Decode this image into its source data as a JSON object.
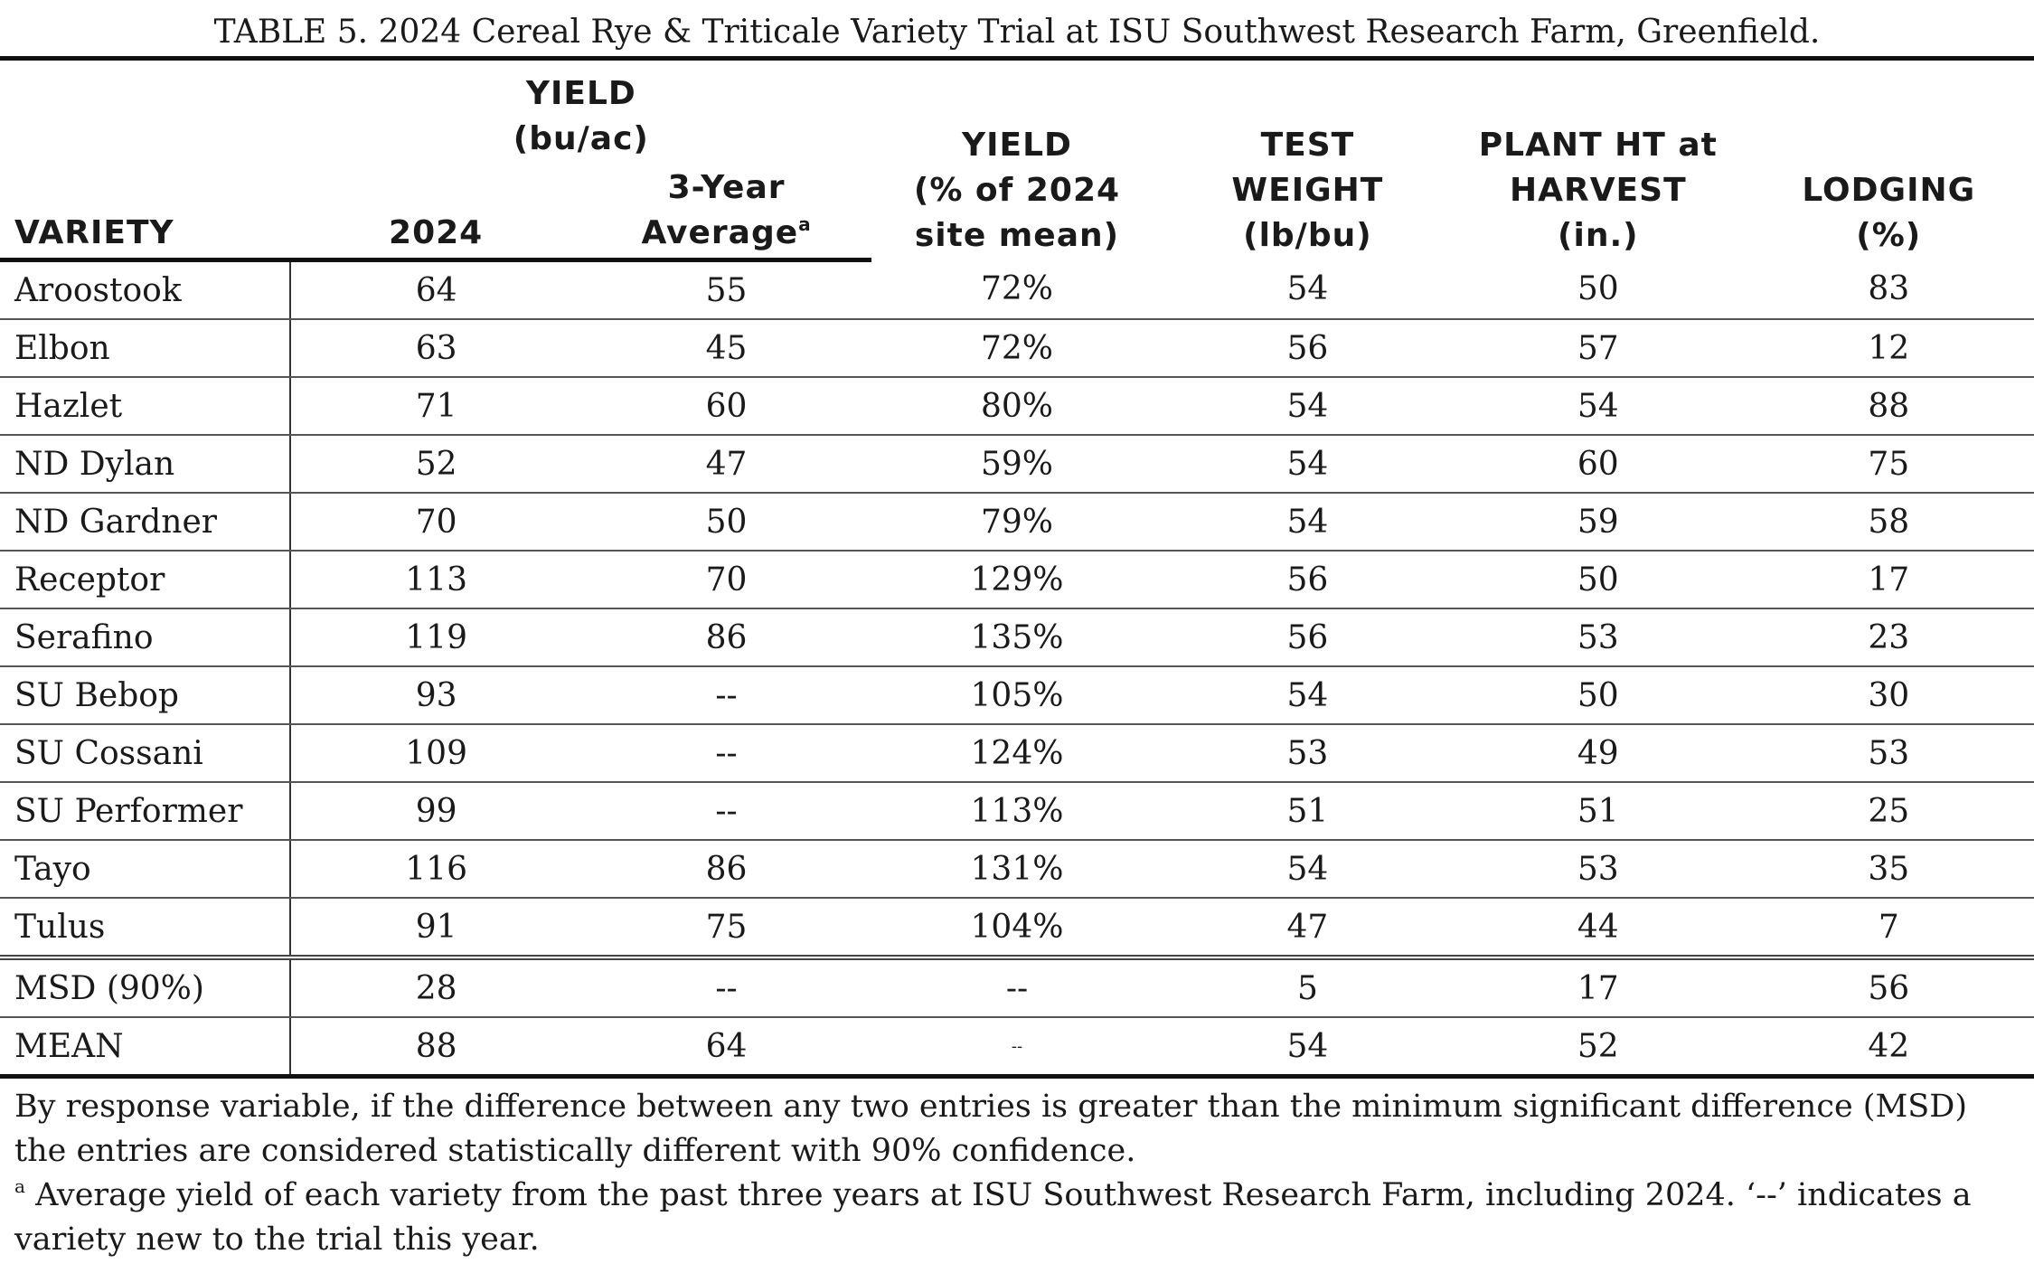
{
  "title": "TABLE 5. 2024 Cereal Rye & Triticale Variety Trial at ISU Southwest Research Farm, Greenfield.",
  "headers": {
    "yield_group_line1": "YIELD",
    "yield_group_line2": "(bu/ac)",
    "variety": "VARIETY",
    "y2024": "2024",
    "three_year_line1": "3-Year",
    "three_year_line2": "Average",
    "three_year_sup": "a",
    "pct_line1": "YIELD",
    "pct_line2": "(% of 2024",
    "pct_line3": "site mean)",
    "tw_line1": "TEST",
    "tw_line2": "WEIGHT",
    "tw_line3": "(lb/bu)",
    "ph_line1": "PLANT HT at",
    "ph_line2": "HARVEST",
    "ph_line3": "(in.)",
    "lodging_line1": "LODGING",
    "lodging_line2": "(%)"
  },
  "rows": [
    {
      "variety": "Aroostook",
      "y2024": "64",
      "avg3": "55",
      "pct": "72%",
      "tw": "54",
      "ht": "50",
      "lodging": "83"
    },
    {
      "variety": "Elbon",
      "y2024": "63",
      "avg3": "45",
      "pct": "72%",
      "tw": "56",
      "ht": "57",
      "lodging": "12"
    },
    {
      "variety": "Hazlet",
      "y2024": "71",
      "avg3": "60",
      "pct": "80%",
      "tw": "54",
      "ht": "54",
      "lodging": "88"
    },
    {
      "variety": "ND Dylan",
      "y2024": "52",
      "avg3": "47",
      "pct": "59%",
      "tw": "54",
      "ht": "60",
      "lodging": "75"
    },
    {
      "variety": "ND Gardner",
      "y2024": "70",
      "avg3": "50",
      "pct": "79%",
      "tw": "54",
      "ht": "59",
      "lodging": "58"
    },
    {
      "variety": "Receptor",
      "y2024": "113",
      "avg3": "70",
      "pct": "129%",
      "tw": "56",
      "ht": "50",
      "lodging": "17"
    },
    {
      "variety": "Serafino",
      "y2024": "119",
      "avg3": "86",
      "pct": "135%",
      "tw": "56",
      "ht": "53",
      "lodging": "23"
    },
    {
      "variety": "SU Bebop",
      "y2024": "93",
      "avg3": "--",
      "pct": "105%",
      "tw": "54",
      "ht": "50",
      "lodging": "30"
    },
    {
      "variety": "SU Cossani",
      "y2024": "109",
      "avg3": "--",
      "pct": "124%",
      "tw": "53",
      "ht": "49",
      "lodging": "53"
    },
    {
      "variety": "SU Performer",
      "y2024": "99",
      "avg3": "--",
      "pct": "113%",
      "tw": "51",
      "ht": "51",
      "lodging": "25"
    },
    {
      "variety": "Tayo",
      "y2024": "116",
      "avg3": "86",
      "pct": "131%",
      "tw": "54",
      "ht": "53",
      "lodging": "35"
    },
    {
      "variety": "Tulus",
      "y2024": "91",
      "avg3": "75",
      "pct": "104%",
      "tw": "47",
      "ht": "44",
      "lodging": "7"
    }
  ],
  "stats": [
    {
      "variety": "MSD (90%)",
      "y2024": "28",
      "avg3": "--",
      "pct": "--",
      "tw": "5",
      "ht": "17",
      "lodging": "56"
    },
    {
      "variety": "MEAN",
      "y2024": "88",
      "avg3": "64",
      "pct": "--",
      "tw": "54",
      "ht": "52",
      "lodging": "42"
    }
  ],
  "footnotes": {
    "msd_note": "By response variable, if the difference between any two entries is greater than the minimum significant difference (MSD) the entries are considered statistically different with 90% confidence.",
    "a_marker": "a",
    "a_note": " Average yield of each variety from the past three years at ISU Southwest Research Farm, including 2024. ‘--’ indicates a variety new to the trial this year."
  }
}
